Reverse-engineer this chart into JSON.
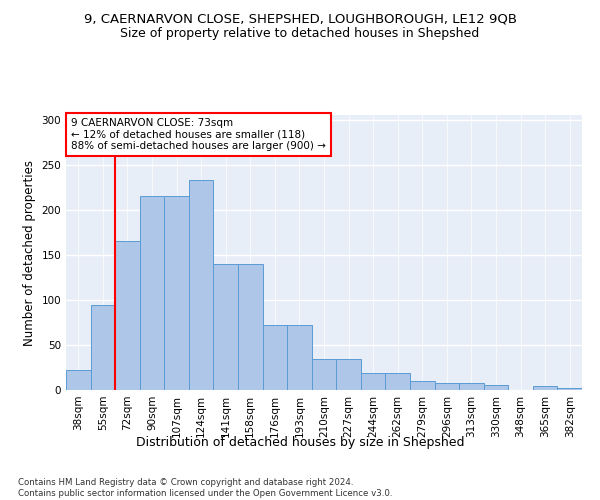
{
  "title": "9, CAERNARVON CLOSE, SHEPSHED, LOUGHBOROUGH, LE12 9QB",
  "subtitle": "Size of property relative to detached houses in Shepshed",
  "xlabel": "Distribution of detached houses by size in Shepshed",
  "ylabel": "Number of detached properties",
  "categories": [
    "38sqm",
    "55sqm",
    "72sqm",
    "90sqm",
    "107sqm",
    "124sqm",
    "141sqm",
    "158sqm",
    "176sqm",
    "193sqm",
    "210sqm",
    "227sqm",
    "244sqm",
    "262sqm",
    "279sqm",
    "296sqm",
    "313sqm",
    "330sqm",
    "348sqm",
    "365sqm",
    "382sqm"
  ],
  "values": [
    22,
    94,
    165,
    215,
    215,
    233,
    140,
    140,
    72,
    72,
    34,
    34,
    19,
    19,
    10,
    8,
    8,
    5,
    0,
    4,
    2
  ],
  "bar_color": "#aec6e8",
  "bar_edge_color": "#5b9bd5",
  "annotation_text": "9 CAERNARVON CLOSE: 73sqm\n← 12% of detached houses are smaller (118)\n88% of semi-detached houses are larger (900) →",
  "annotation_box_color": "white",
  "annotation_box_edge_color": "red",
  "vline_color": "red",
  "vline_x": 1.5,
  "ylim": [
    0,
    305
  ],
  "yticks": [
    0,
    50,
    100,
    150,
    200,
    250,
    300
  ],
  "footer": "Contains HM Land Registry data © Crown copyright and database right 2024.\nContains public sector information licensed under the Open Government Licence v3.0.",
  "title_fontsize": 9.5,
  "subtitle_fontsize": 9,
  "xlabel_fontsize": 9,
  "ylabel_fontsize": 8.5,
  "tick_fontsize": 7.5,
  "annotation_fontsize": 7.5,
  "background_color": "#e8eef8",
  "grid_color": "white"
}
